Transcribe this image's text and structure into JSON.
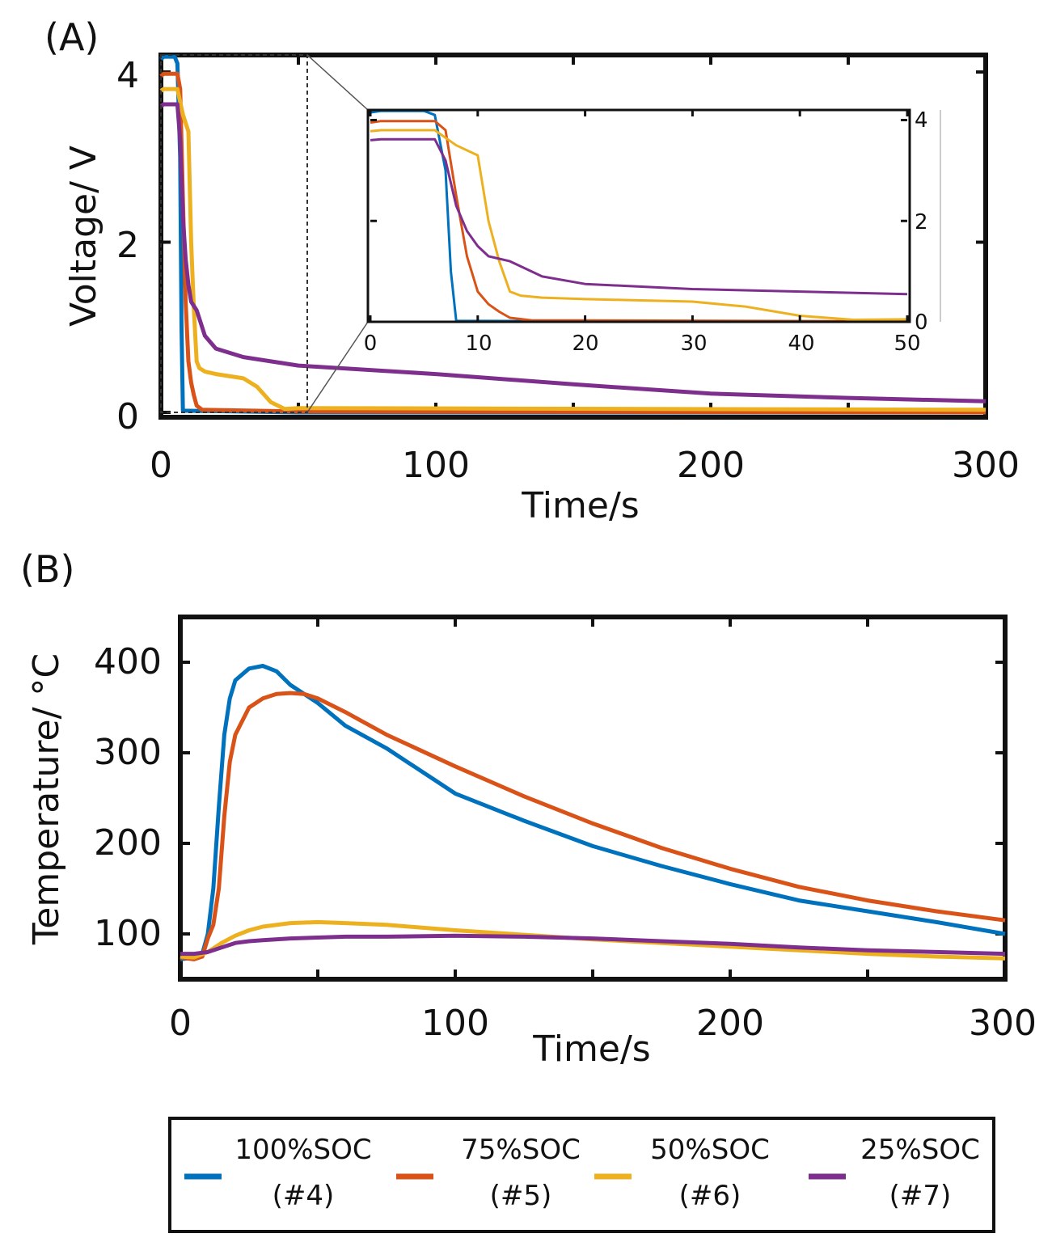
{
  "chart_data": [
    {
      "type": "line",
      "panel_label": "(A)",
      "xlabel": "Time/s",
      "ylabel": "Voltage/ V",
      "xlim": [
        0,
        300
      ],
      "ylim": [
        0,
        4.2
      ],
      "xticks": [
        "0",
        "100",
        "200",
        "300"
      ],
      "yticks": [
        "0",
        "2",
        "4"
      ],
      "series": [
        {
          "name": "100%SOC (#4)",
          "color": "#0072BD",
          "x": [
            0,
            1,
            5,
            6,
            7,
            7.5,
            8,
            50,
            300
          ],
          "y": [
            4.15,
            4.18,
            4.18,
            4.1,
            3.0,
            1.0,
            0.02,
            0.0,
            0.0
          ]
        },
        {
          "name": "75%SOC (#5)",
          "color": "#D95319",
          "x": [
            0,
            1,
            6,
            7,
            8,
            9,
            10,
            11,
            12,
            13,
            15,
            50,
            300
          ],
          "y": [
            3.95,
            3.98,
            3.98,
            3.8,
            2.5,
            1.3,
            0.6,
            0.35,
            0.2,
            0.08,
            0.03,
            0.01,
            0.0
          ]
        },
        {
          "name": "50%SOC (#6)",
          "color": "#EDB120",
          "x": [
            0,
            1,
            6,
            8,
            10,
            11,
            12,
            13,
            14,
            16,
            20,
            30,
            35,
            40,
            45,
            50,
            300
          ],
          "y": [
            3.78,
            3.8,
            3.8,
            3.5,
            3.3,
            2.0,
            1.2,
            0.6,
            0.52,
            0.48,
            0.45,
            0.4,
            0.3,
            0.12,
            0.04,
            0.05,
            0.03
          ]
        },
        {
          "name": "25%SOC (#7)",
          "color": "#7E2F8E",
          "x": [
            0,
            1,
            6,
            7,
            8,
            9,
            10,
            11,
            12,
            13,
            14,
            16,
            20,
            30,
            50,
            100,
            150,
            200,
            250,
            300
          ],
          "y": [
            3.6,
            3.62,
            3.62,
            3.2,
            2.3,
            1.8,
            1.5,
            1.3,
            1.25,
            1.2,
            1.1,
            0.9,
            0.75,
            0.65,
            0.55,
            0.45,
            0.33,
            0.22,
            0.17,
            0.13
          ]
        }
      ],
      "inset": {
        "xlim": [
          0,
          50
        ],
        "ylim": [
          0,
          4.2
        ],
        "xticks": [
          "0",
          "10",
          "20",
          "30",
          "40",
          "50"
        ],
        "yticks": [
          "0",
          "2",
          "4"
        ]
      }
    },
    {
      "type": "line",
      "panel_label": "(B)",
      "xlabel": "Time/s",
      "ylabel": "Temperature/ °C",
      "xlim": [
        0,
        300
      ],
      "ylim": [
        50,
        450
      ],
      "xticks": [
        "0",
        "100",
        "200",
        "300"
      ],
      "yticks": [
        "100",
        "200",
        "300",
        "400"
      ],
      "series": [
        {
          "name": "100%SOC (#4)",
          "color": "#0072BD",
          "x": [
            0,
            5,
            8,
            10,
            12,
            14,
            16,
            18,
            20,
            25,
            30,
            35,
            40,
            50,
            60,
            75,
            100,
            125,
            150,
            175,
            200,
            225,
            250,
            275,
            300
          ],
          "y": [
            72,
            74,
            78,
            100,
            150,
            240,
            320,
            360,
            380,
            393,
            396,
            390,
            375,
            355,
            330,
            305,
            255,
            225,
            197,
            175,
            155,
            137,
            125,
            113,
            100
          ]
        },
        {
          "name": "75%SOC (#5)",
          "color": "#D95319",
          "x": [
            0,
            5,
            8,
            10,
            12,
            14,
            16,
            18,
            20,
            25,
            30,
            35,
            40,
            45,
            50,
            60,
            75,
            100,
            125,
            150,
            175,
            200,
            225,
            250,
            275,
            300
          ],
          "y": [
            74,
            72,
            75,
            95,
            110,
            150,
            230,
            290,
            320,
            350,
            360,
            365,
            366,
            365,
            360,
            345,
            320,
            285,
            252,
            222,
            195,
            172,
            152,
            137,
            125,
            115
          ]
        },
        {
          "name": "50%SOC (#6)",
          "color": "#EDB120",
          "x": [
            0,
            5,
            10,
            15,
            20,
            25,
            30,
            40,
            50,
            60,
            75,
            100,
            125,
            150,
            175,
            200,
            225,
            250,
            275,
            300
          ],
          "y": [
            75,
            74,
            80,
            90,
            98,
            104,
            108,
            112,
            113,
            112,
            110,
            104,
            99,
            94,
            90,
            86,
            82,
            78,
            75,
            73
          ]
        },
        {
          "name": "25%SOC (#7)",
          "color": "#7E2F8E",
          "x": [
            0,
            5,
            10,
            15,
            20,
            25,
            30,
            40,
            50,
            60,
            75,
            100,
            125,
            150,
            175,
            200,
            225,
            250,
            275,
            300
          ],
          "y": [
            78,
            78,
            80,
            85,
            90,
            92,
            93,
            95,
            96,
            97,
            97,
            98,
            97,
            95,
            92,
            89,
            85,
            82,
            80,
            78
          ]
        }
      ]
    }
  ],
  "legend": {
    "items": [
      {
        "line1": "100%SOC",
        "line2": "(#4)",
        "color": "#0072BD"
      },
      {
        "line1": "75%SOC",
        "line2": "(#5)",
        "color": "#D95319"
      },
      {
        "line1": "50%SOC",
        "line2": "(#6)",
        "color": "#EDB120"
      },
      {
        "line1": "25%SOC",
        "line2": "(#7)",
        "color": "#7E2F8E"
      }
    ]
  }
}
